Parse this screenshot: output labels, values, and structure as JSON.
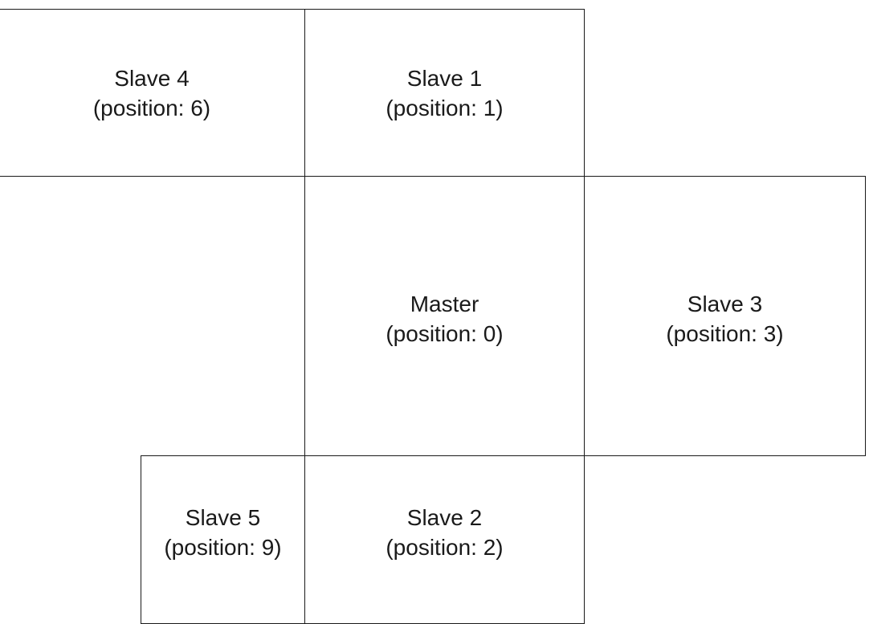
{
  "screens": [
    {
      "id": "slave-4",
      "name": "Slave 4",
      "position_text": "(position: 6)",
      "position": 6
    },
    {
      "id": "slave-1",
      "name": "Slave 1",
      "position_text": "(position: 1)",
      "position": 1
    },
    {
      "id": "master",
      "name": "Master",
      "position_text": "(position: 0)",
      "position": 0
    },
    {
      "id": "slave-3",
      "name": "Slave 3",
      "position_text": "(position: 3)",
      "position": 3
    },
    {
      "id": "slave-5",
      "name": "Slave 5",
      "position_text": "(position: 9)",
      "position": 9
    },
    {
      "id": "slave-2",
      "name": "Slave 2",
      "position_text": "(position: 2)",
      "position": 2
    }
  ],
  "colors": {
    "border": "#1a1a1a",
    "text": "#1a1a1a",
    "background": "#ffffff"
  }
}
